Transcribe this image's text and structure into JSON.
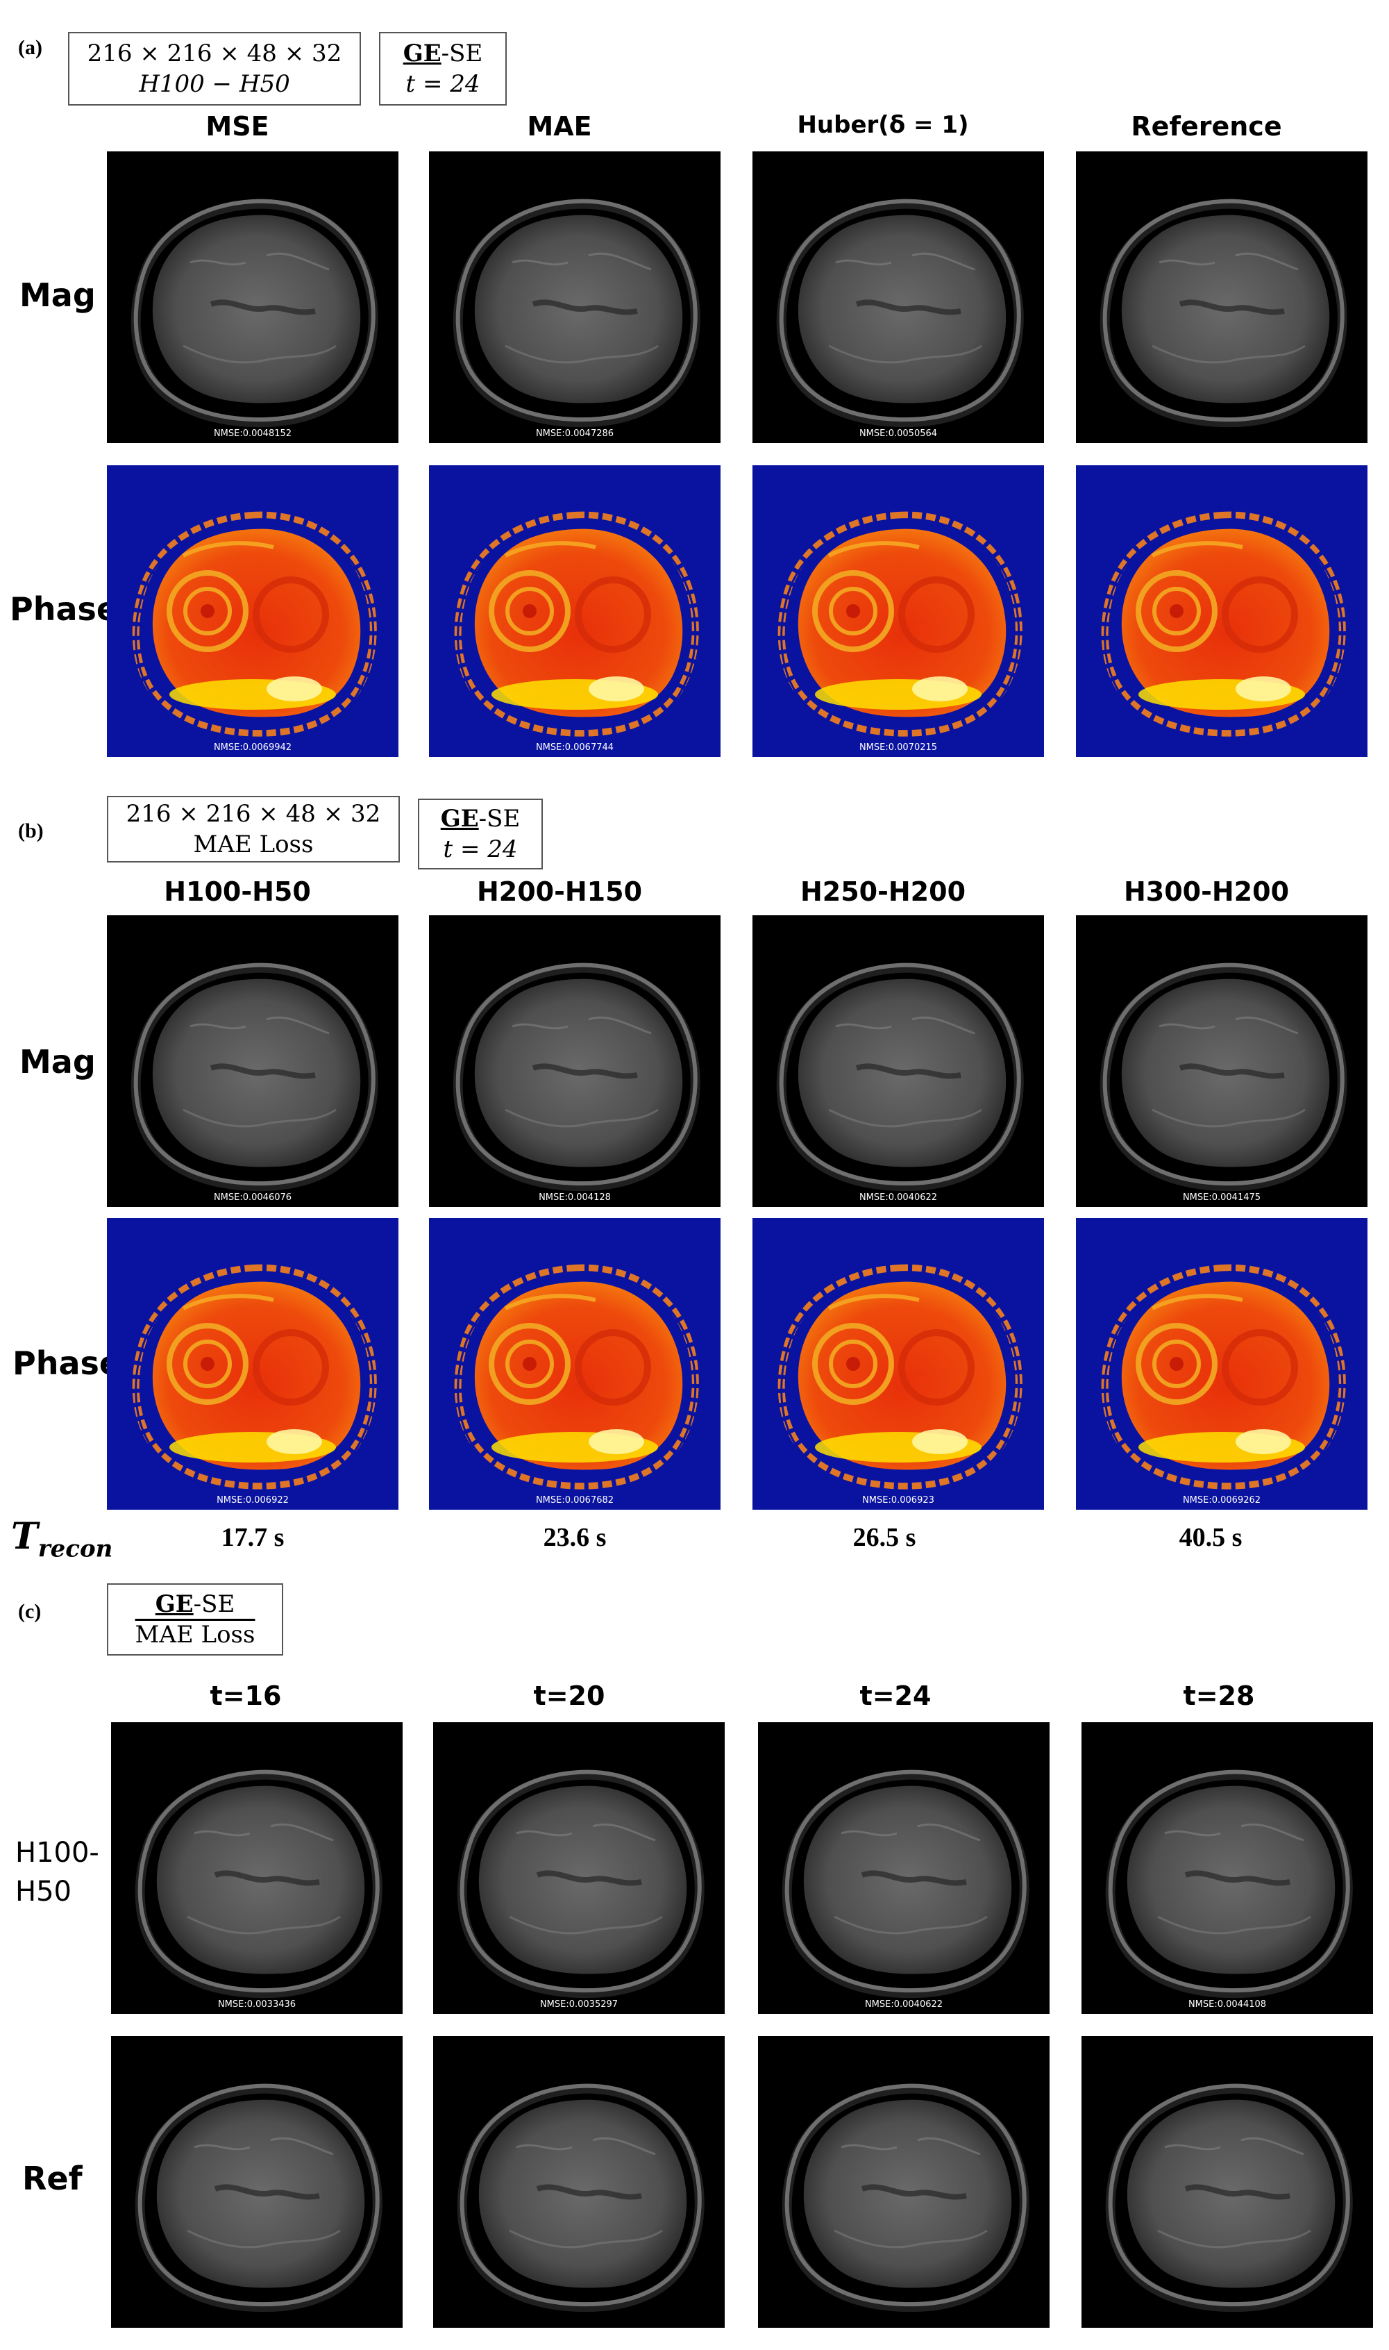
{
  "panel_a": {
    "tag": "(a)",
    "box1": [
      "216 × 216 × 48 × 32",
      "H100 − H50"
    ],
    "box2_bold": "GE",
    "box2_rest": "-SE",
    "box2_line2": "t = 24",
    "columns": [
      "MSE",
      "MAE",
      "Huber(δ = 1)",
      "Reference"
    ],
    "rows": [
      "Mag",
      "Phase"
    ],
    "nmse_mag": [
      "NMSE:0.0048152",
      "NMSE:0.0047286",
      "NMSE:0.0050564",
      ""
    ],
    "nmse_phase": [
      "NMSE:0.0069942",
      "NMSE:0.0067744",
      "NMSE:0.0070215",
      ""
    ]
  },
  "panel_b": {
    "tag": "(b)",
    "box1": [
      "216 × 216 × 48 × 32",
      "MAE Loss"
    ],
    "box2_bold": "GE",
    "box2_rest": "-SE",
    "box2_line2": "t = 24",
    "columns": [
      "H100-H50",
      "H200-H150",
      "H250-H200",
      "H300-H200"
    ],
    "rows": [
      "Mag",
      "Phase"
    ],
    "nmse_mag": [
      "NMSE:0.0046076",
      "NMSE:0.004128",
      "NMSE:0.0040622",
      "NMSE:0.0041475"
    ],
    "nmse_phase": [
      "NMSE:0.006922",
      "NMSE:0.0067682",
      "NMSE:0.006923",
      "NMSE:0.0069262"
    ],
    "trecon_main": "T",
    "trecon_sub": "recon",
    "times": [
      "17.7 s",
      "23.6 s",
      "26.5 s",
      "40.5 s"
    ]
  },
  "panel_c": {
    "tag": "(c)",
    "box_bold": "GE",
    "box_rest": "-SE",
    "box_line2": "MAE Loss",
    "columns": [
      "t=16",
      "t=20",
      "t=24",
      "t=28"
    ],
    "row1": [
      "H100-",
      "H50"
    ],
    "row2": "Ref",
    "nmse_row1": [
      "NMSE:0.0033436",
      "NMSE:0.0035297",
      "NMSE:0.0040622",
      "NMSE:0.0044108"
    ]
  },
  "colors": {
    "phase_background": "#0a12a0",
    "phase_brain": "#e8300a",
    "phase_hot": "#ffe200",
    "mag_background": "#000000"
  }
}
